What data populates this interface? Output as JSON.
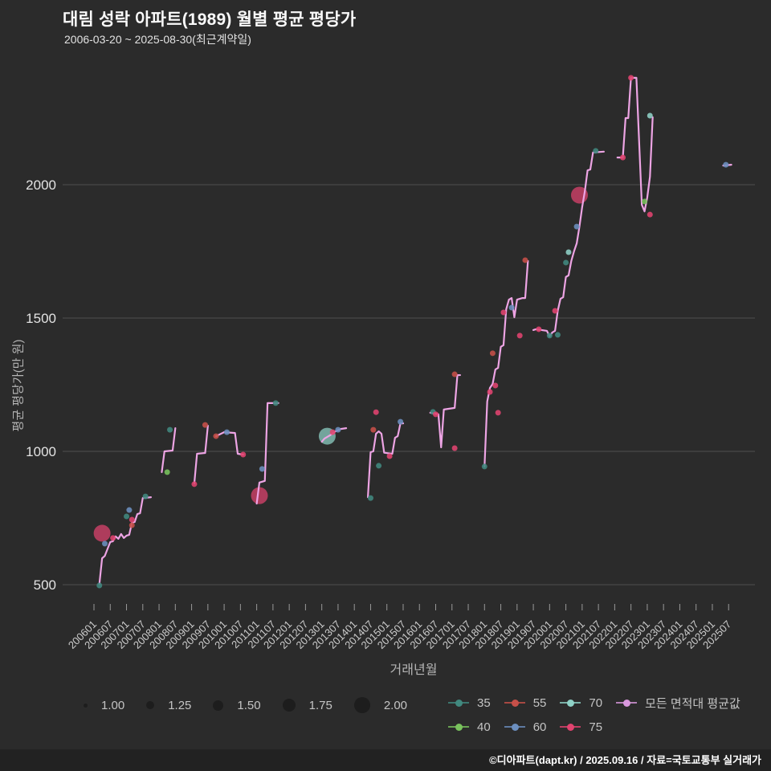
{
  "header": {
    "title": "대림 성락 아파트(1989) 월별 평균 평당가",
    "subtitle": "2006-03-20 ~ 2025-08-30(최근계약일)"
  },
  "footer": {
    "text": "©디아파트(dapt.kr) / 2025.09.16 / 자료=국토교통부 실거래가"
  },
  "legend": {
    "sizes": [
      {
        "label": "1.00"
      },
      {
        "label": "1.25"
      },
      {
        "label": "1.50"
      },
      {
        "label": "1.75"
      },
      {
        "label": "2.00"
      }
    ],
    "series_rows": [
      [
        {
          "key": "35",
          "label": "35"
        },
        {
          "key": "55",
          "label": "55"
        },
        {
          "key": "70",
          "label": "70"
        },
        {
          "key": "avg",
          "label": "모든 면적대 평균값"
        }
      ],
      [
        {
          "key": "40",
          "label": "40"
        },
        {
          "key": "60",
          "label": "60"
        },
        {
          "key": "75",
          "label": "75"
        }
      ]
    ]
  },
  "chart_data": {
    "type": "scatter",
    "title": "대림 성락 아파트(1989) 월별 평균 평당가",
    "subtitle": "2006-03-20 ~ 2025-08-30(최근계약일)",
    "xlabel": "거래년월",
    "ylabel": "평균 평당가(만 원)",
    "grid": true,
    "legend_position": "bottom",
    "y_ticks": [
      500,
      1000,
      1500,
      2000
    ],
    "ylim": [
      370,
      2440
    ],
    "x_ticks": [
      "200601",
      "200607",
      "200701",
      "200707",
      "200801",
      "200807",
      "200901",
      "200907",
      "201001",
      "201007",
      "201101",
      "201107",
      "201201",
      "201207",
      "201301",
      "201307",
      "201401",
      "201407",
      "201501",
      "201507",
      "201601",
      "201607",
      "201701",
      "201707",
      "201801",
      "201807",
      "201901",
      "201907",
      "202001",
      "202007",
      "202101",
      "202107",
      "202201",
      "202207",
      "202301",
      "202307",
      "202401",
      "202407",
      "202501",
      "202507"
    ],
    "series_colors": {
      "35": "#41897f",
      "40": "#79c25d",
      "55": "#c75049",
      "60": "#6c8fbf",
      "70": "#8fd2c7",
      "75": "#e1436f",
      "avg": "#d998dd"
    },
    "size_scale": [
      1.0,
      1.25,
      1.5,
      1.75,
      2.0
    ],
    "avg_line": {
      "name": "모든 면적대 평균값",
      "color": "#eda4e4",
      "segments": [
        [
          [
            200603,
            503
          ],
          [
            200604,
            599
          ],
          [
            200605,
            608
          ],
          [
            200607,
            660
          ],
          [
            200608,
            663
          ],
          [
            200609,
            681
          ],
          [
            200610,
            672
          ],
          [
            200611,
            690
          ],
          [
            200612,
            675
          ],
          [
            200701,
            684
          ],
          [
            200702,
            687
          ],
          [
            200703,
            732
          ],
          [
            200704,
            735
          ],
          [
            200705,
            765
          ],
          [
            200706,
            768
          ],
          [
            200707,
            825
          ],
          [
            200710,
            828
          ]
        ],
        [
          [
            200802,
            922
          ],
          [
            200803,
            1000
          ],
          [
            200806,
            1003
          ],
          [
            200807,
            1087
          ]
        ],
        [
          [
            200902,
            880
          ],
          [
            200903,
            991
          ],
          [
            200906,
            994
          ],
          [
            200907,
            1096
          ]
        ],
        [
          [
            200910,
            1057
          ],
          [
            201001,
            1072
          ],
          [
            201005,
            1069
          ],
          [
            201006,
            991
          ],
          [
            201008,
            988
          ]
        ],
        [
          [
            201101,
            804
          ],
          [
            201102,
            883
          ],
          [
            201104,
            889
          ],
          [
            201105,
            1181
          ],
          [
            201109,
            1181
          ]
        ],
        [
          [
            201301,
            1036
          ],
          [
            201302,
            1048
          ],
          [
            201304,
            1060
          ],
          [
            201306,
            1075
          ],
          [
            201308,
            1084
          ],
          [
            201310,
            1087
          ]
        ],
        [
          [
            201406,
            828
          ],
          [
            201407,
            997
          ],
          [
            201408,
            1000
          ],
          [
            201409,
            1066
          ],
          [
            201410,
            1075
          ],
          [
            201411,
            1066
          ],
          [
            201412,
            995
          ],
          [
            201503,
            991
          ],
          [
            201504,
            1051
          ],
          [
            201505,
            1057
          ],
          [
            201506,
            1105
          ],
          [
            201507,
            1105
          ]
        ],
        [
          [
            201605,
            1145
          ],
          [
            201608,
            1139
          ],
          [
            201609,
            1015
          ],
          [
            201610,
            1157
          ],
          [
            201702,
            1163
          ],
          [
            201703,
            1286
          ],
          [
            201704,
            1286
          ]
        ],
        [
          [
            201801,
            943
          ],
          [
            201802,
            1187
          ],
          [
            201803,
            1238
          ],
          [
            201804,
            1253
          ],
          [
            201805,
            1307
          ],
          [
            201806,
            1313
          ],
          [
            201807,
            1392
          ],
          [
            201808,
            1398
          ],
          [
            201809,
            1533
          ],
          [
            201810,
            1569
          ],
          [
            201811,
            1575
          ],
          [
            201812,
            1503
          ],
          [
            201901,
            1569
          ],
          [
            201903,
            1575
          ],
          [
            201904,
            1575
          ],
          [
            201905,
            1714
          ]
        ],
        [
          [
            201907,
            1455
          ],
          [
            201908,
            1458
          ],
          [
            201912,
            1452
          ],
          [
            202001,
            1431
          ],
          [
            202002,
            1446
          ],
          [
            202003,
            1452
          ],
          [
            202004,
            1527
          ],
          [
            202005,
            1572
          ],
          [
            202006,
            1578
          ],
          [
            202007,
            1654
          ],
          [
            202008,
            1660
          ],
          [
            202009,
            1714
          ],
          [
            202010,
            1750
          ],
          [
            202011,
            1780
          ],
          [
            202012,
            1843
          ],
          [
            202101,
            1916
          ],
          [
            202102,
            1976
          ],
          [
            202103,
            2054
          ],
          [
            202104,
            2057
          ],
          [
            202105,
            2121
          ],
          [
            202109,
            2124
          ]
        ],
        [
          [
            202202,
            2102
          ],
          [
            202204,
            2102
          ],
          [
            202205,
            2250
          ],
          [
            202206,
            2250
          ],
          [
            202207,
            2401
          ],
          [
            202209,
            2401
          ],
          [
            202211,
            1925
          ],
          [
            202212,
            1900
          ],
          [
            202301,
            1952
          ],
          [
            202302,
            2030
          ],
          [
            202303,
            2253
          ]
        ],
        [
          [
            202505,
            2072
          ],
          [
            202508,
            2075
          ]
        ]
      ]
    },
    "points": [
      [
        200603,
        497,
        "35",
        1
      ],
      [
        200604,
        693,
        "75",
        2
      ],
      [
        200605,
        654,
        "60",
        1
      ],
      [
        200608,
        675,
        "75",
        1
      ],
      [
        200701,
        756,
        "35",
        1
      ],
      [
        200702,
        780,
        "60",
        1
      ],
      [
        200703,
        744,
        "75",
        1
      ],
      [
        200703,
        723,
        "55",
        1
      ],
      [
        200708,
        831,
        "35",
        1
      ],
      [
        200804,
        922,
        "40",
        1
      ],
      [
        200805,
        1081,
        "35",
        1
      ],
      [
        200902,
        877,
        "75",
        1
      ],
      [
        200906,
        1099,
        "55",
        1
      ],
      [
        200910,
        1057,
        "55",
        1
      ],
      [
        201002,
        1072,
        "60",
        1
      ],
      [
        201008,
        988,
        "75",
        1
      ],
      [
        201102,
        834,
        "75",
        2
      ],
      [
        201103,
        934,
        "60",
        1
      ],
      [
        201108,
        1181,
        "35",
        1
      ],
      [
        201303,
        1057,
        "70",
        2
      ],
      [
        201305,
        1072,
        "75",
        1
      ],
      [
        201307,
        1081,
        "60",
        1
      ],
      [
        201407,
        825,
        "35",
        1
      ],
      [
        201408,
        1081,
        "55",
        1
      ],
      [
        201409,
        1147,
        "75",
        1
      ],
      [
        201410,
        946,
        "35",
        1
      ],
      [
        201502,
        982,
        "75",
        1
      ],
      [
        201506,
        1111,
        "60",
        1
      ],
      [
        201606,
        1148,
        "35",
        1
      ],
      [
        201607,
        1139,
        "75",
        1
      ],
      [
        201702,
        1289,
        "55",
        1
      ],
      [
        201702,
        1012,
        "75",
        1
      ],
      [
        201801,
        943,
        "35",
        1
      ],
      [
        201803,
        1223,
        "75",
        1
      ],
      [
        201805,
        1247,
        "75",
        1
      ],
      [
        201804,
        1368,
        "55",
        1
      ],
      [
        201806,
        1145,
        "75",
        1
      ],
      [
        201808,
        1521,
        "75",
        1
      ],
      [
        201811,
        1539,
        "60",
        1
      ],
      [
        201902,
        1434,
        "75",
        1
      ],
      [
        201904,
        1717,
        "55",
        1
      ],
      [
        201909,
        1458,
        "75",
        1
      ],
      [
        202001,
        1434,
        "35",
        1
      ],
      [
        202003,
        1527,
        "75",
        1
      ],
      [
        202004,
        1437,
        "35",
        1
      ],
      [
        202007,
        1708,
        "35",
        1
      ],
      [
        202008,
        1747,
        "70",
        1
      ],
      [
        202011,
        1843,
        "60",
        1
      ],
      [
        202012,
        1961,
        "75",
        2
      ],
      [
        202106,
        2127,
        "35",
        1
      ],
      [
        202204,
        2102,
        "75",
        1
      ],
      [
        202207,
        2401,
        "75",
        1
      ],
      [
        202212,
        1937,
        "40",
        1
      ],
      [
        202302,
        1888,
        "75",
        1
      ],
      [
        202302,
        2259,
        "70",
        1
      ],
      [
        202506,
        2075,
        "60",
        1
      ]
    ]
  }
}
